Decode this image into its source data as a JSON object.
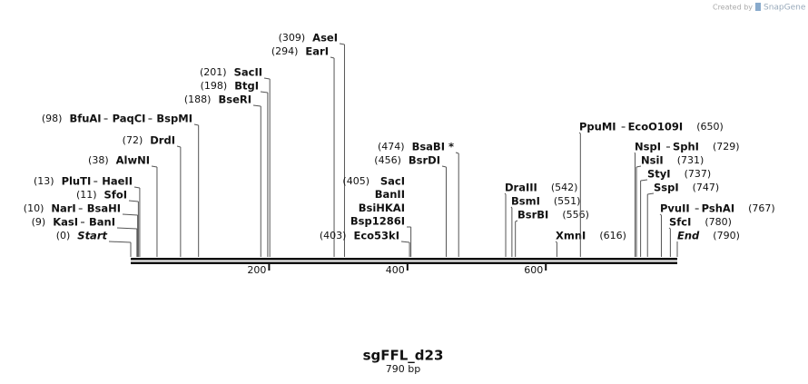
{
  "brand": "Created by",
  "brand_name": "SnapGene",
  "title": "sgFFL_d23",
  "subtitle": "790 bp",
  "length": 790,
  "ruler_ticks": [
    200,
    400,
    600
  ],
  "sites": [
    {
      "position": 0,
      "position_label": "(0)",
      "names": [
        "Start"
      ]
    },
    {
      "position": 9,
      "position_label": "(9)",
      "names": [
        "KasI",
        "BanI"
      ]
    },
    {
      "position": 10,
      "position_label": "(10)",
      "names": [
        "NarI",
        "BsaHI"
      ]
    },
    {
      "position": 11,
      "position_label": "(11)",
      "names": [
        "SfoI"
      ]
    },
    {
      "position": 13,
      "position_label": "(13)",
      "names": [
        "PluTI",
        "HaeII"
      ]
    },
    {
      "position": 38,
      "position_label": "(38)",
      "names": [
        "AlwNI"
      ]
    },
    {
      "position": 72,
      "position_label": "(72)",
      "names": [
        "DrdI"
      ]
    },
    {
      "position": 98,
      "position_label": "(98)",
      "names": [
        "BfuAI",
        "PaqCI",
        "BspMI"
      ]
    },
    {
      "position": 188,
      "position_label": "(188)",
      "names": [
        "BseRI"
      ]
    },
    {
      "position": 198,
      "position_label": "(198)",
      "names": [
        "BtgI"
      ]
    },
    {
      "position": 201,
      "position_label": "(201)",
      "names": [
        "SacII"
      ]
    },
    {
      "position": 294,
      "position_label": "(294)",
      "names": [
        "EarI"
      ]
    },
    {
      "position": 309,
      "position_label": "(309)",
      "names": [
        "AseI"
      ]
    },
    {
      "position": 403,
      "position_label": "(403)",
      "names": [
        "Eco53kI"
      ]
    },
    {
      "position": 405,
      "position_label": "(405)",
      "names": [
        "SacI",
        "BanII",
        "BsiHKAI",
        "Bsp1286I"
      ]
    },
    {
      "position": 456,
      "position_label": "(456)",
      "names": [
        "BsrDI"
      ]
    },
    {
      "position": 474,
      "position_label": "(474)",
      "names": [
        "BsaBI *"
      ]
    },
    {
      "position": 542,
      "position_label": "(542)",
      "names": [
        "DraIII"
      ]
    },
    {
      "position": 551,
      "position_label": "(551)",
      "names": [
        "BsmI"
      ]
    },
    {
      "position": 556,
      "position_label": "(556)",
      "names": [
        "BsrBI"
      ]
    },
    {
      "position": 616,
      "position_label": "(616)",
      "names": [
        "XmnI"
      ]
    },
    {
      "position": 650,
      "position_label": "(650)",
      "names": [
        "PpuMI",
        "EcoO109I"
      ]
    },
    {
      "position": 729,
      "position_label": "(729)",
      "names": [
        "NspI",
        "SphI"
      ]
    },
    {
      "position": 731,
      "position_label": "(731)",
      "names": [
        "NsiI"
      ]
    },
    {
      "position": 737,
      "position_label": "(737)",
      "names": [
        "StyI"
      ]
    },
    {
      "position": 747,
      "position_label": "(747)",
      "names": [
        "SspI"
      ]
    },
    {
      "position": 767,
      "position_label": "(767)",
      "names": [
        "PvuII",
        "PshAI"
      ]
    },
    {
      "position": 780,
      "position_label": "(780)",
      "names": [
        "SfcI"
      ]
    },
    {
      "position": 790,
      "position_label": "(790)",
      "names": [
        "End"
      ]
    }
  ]
}
